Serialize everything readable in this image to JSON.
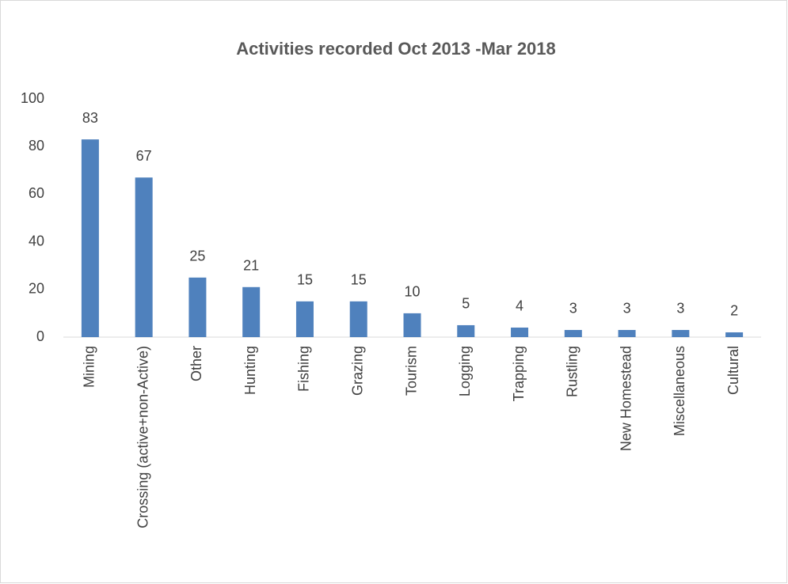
{
  "chart_data": {
    "type": "bar",
    "title": "Activities recorded Oct 2013 -Mar 2018",
    "categories": [
      "Mining",
      "Crossing (active+non-Active)",
      "Other",
      "Hunting",
      "Fishing",
      "Grazing",
      "Tourism",
      "Logging",
      "Trapping",
      "Rustling",
      "New Homestead",
      "Miscellaneous",
      "Cultural"
    ],
    "values": [
      83,
      67,
      25,
      21,
      15,
      15,
      10,
      5,
      4,
      3,
      3,
      3,
      2
    ],
    "color": "#4f81bd",
    "ylim": [
      0,
      100
    ],
    "yticks": [
      0,
      20,
      40,
      60,
      80,
      100
    ],
    "grid": false
  }
}
